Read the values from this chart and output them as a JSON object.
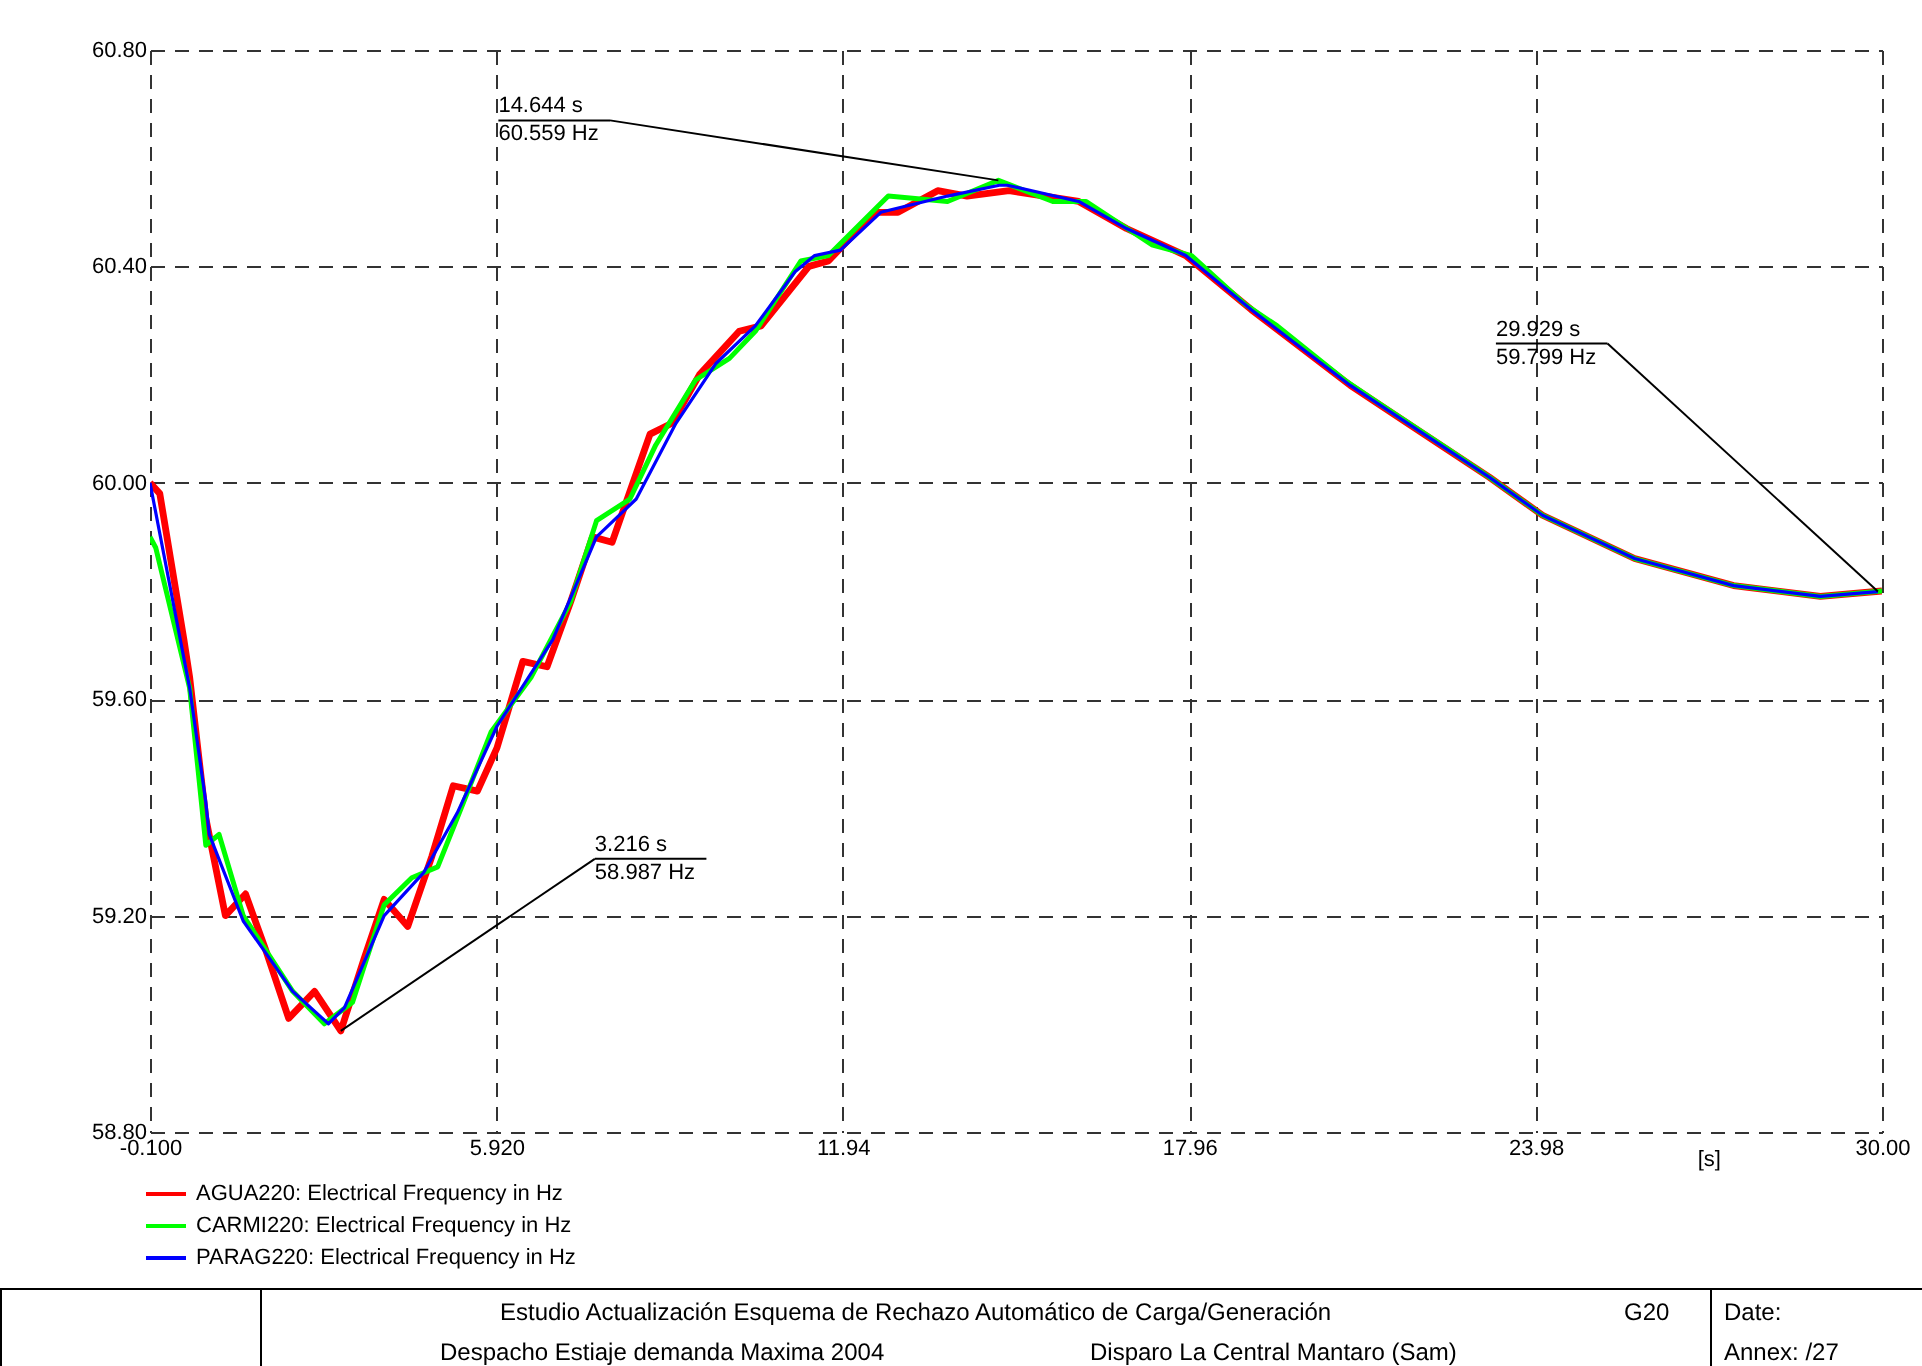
{
  "chart_data": {
    "type": "line",
    "xlabel": "[s]",
    "xlim": [
      -0.1,
      30.0
    ],
    "xticks": [
      {
        "value": -0.1,
        "label": "-0.100"
      },
      {
        "value": 5.92,
        "label": "5.920"
      },
      {
        "value": 11.94,
        "label": "11.94"
      },
      {
        "value": 17.96,
        "label": "17.96"
      },
      {
        "value": 23.98,
        "label": "23.98"
      },
      {
        "value": 30.0,
        "label": "30.00"
      }
    ],
    "ylim": [
      58.8,
      60.8
    ],
    "yticks": [
      {
        "value": 58.8,
        "label": "58.80"
      },
      {
        "value": 59.2,
        "label": "59.20"
      },
      {
        "value": 59.6,
        "label": "59.60"
      },
      {
        "value": 60.0,
        "label": "60.00"
      },
      {
        "value": 60.4,
        "label": "60.40"
      },
      {
        "value": 60.8,
        "label": "60.80"
      }
    ],
    "grid": true,
    "legend": "bottom left",
    "line_style": "solid",
    "annotations": [
      {
        "text": "14.644 s\n60.559 Hz",
        "x": 14.644,
        "y": 60.559
      },
      {
        "text": "3.216 s\n58.987 Hz",
        "x": 3.216,
        "y": 58.987
      },
      {
        "text": "29.929 s\n59.799 Hz",
        "x": 29.929,
        "y": 59.799
      },
      "Estudio Actualización Esquema de Rechazo Automático de Carga/Generación",
      "G20",
      "Date:",
      "Despacho Estiaje demanda Maxima 2004",
      "Disparo La Central Mantaro (Sam)",
      "Annex:   /27"
    ],
    "series": [
      {
        "name": "AGUA220: Electrical Frequency in Hz",
        "color": "#ff0000",
        "x": [
          -0.1,
          0.07,
          0.49,
          0.59,
          0.87,
          1.21,
          1.56,
          1.9,
          2.31,
          2.76,
          3.216,
          3.62,
          3.97,
          4.38,
          4.8,
          5.17,
          5.59,
          5.93,
          6.38,
          6.8,
          7.21,
          7.59,
          7.93,
          8.59,
          8.97,
          9.45,
          10.14,
          10.52,
          11.35,
          11.69,
          12.49,
          12.9,
          13.59,
          14.1,
          14.83,
          16.04,
          16.87,
          17.9,
          19.04,
          20.76,
          22.04,
          23.18,
          24.1,
          25.7,
          27.42,
          28.93,
          30.0
        ],
        "values": [
          60.0,
          59.98,
          59.71,
          59.64,
          59.38,
          59.2,
          59.24,
          59.14,
          59.01,
          59.06,
          58.987,
          59.12,
          59.23,
          59.18,
          59.31,
          59.44,
          59.43,
          59.51,
          59.67,
          59.66,
          59.78,
          59.9,
          59.89,
          60.09,
          60.11,
          60.2,
          60.28,
          60.29,
          60.4,
          60.41,
          60.5,
          60.5,
          60.54,
          60.53,
          60.54,
          60.52,
          60.47,
          60.42,
          60.32,
          60.18,
          60.09,
          60.01,
          59.94,
          59.86,
          59.81,
          59.79,
          59.8
        ]
      },
      {
        "name": "CARMI220: Electrical Frequency in Hz",
        "color": "#00ff00",
        "x": [
          -0.1,
          0.0,
          0.59,
          0.87,
          1.1,
          1.52,
          2.38,
          2.93,
          3.42,
          3.97,
          4.45,
          4.9,
          5.35,
          5.83,
          6.52,
          7.21,
          7.66,
          8.24,
          8.69,
          9.38,
          9.97,
          10.42,
          11.21,
          11.69,
          12.73,
          13.76,
          14.644,
          15.59,
          16.17,
          17.31,
          18.0,
          18.93,
          19.49,
          20.66,
          21.21,
          22.49,
          23.18,
          24.1,
          25.7,
          27.42,
          28.93,
          30.0
        ],
        "values": [
          59.9,
          59.88,
          59.62,
          59.33,
          59.35,
          59.2,
          59.06,
          59.0,
          59.04,
          59.22,
          59.27,
          59.29,
          59.41,
          59.54,
          59.64,
          59.78,
          59.93,
          59.97,
          60.07,
          60.19,
          60.23,
          60.28,
          60.41,
          60.42,
          60.53,
          60.52,
          60.559,
          60.52,
          60.52,
          60.44,
          60.42,
          60.33,
          60.29,
          60.19,
          60.15,
          60.06,
          60.01,
          59.94,
          59.86,
          59.81,
          59.79,
          59.8
        ]
      },
      {
        "name": "PARAG220: Electrical Frequency in Hz",
        "color": "#0000ff",
        "x": [
          -0.1,
          0.59,
          0.87,
          0.93,
          1.52,
          2.38,
          3.0,
          3.28,
          3.97,
          4.66,
          5.24,
          5.93,
          6.9,
          7.66,
          8.35,
          9.04,
          9.73,
          10.42,
          11.11,
          11.45,
          11.9,
          12.6,
          13.76,
          14.66,
          14.8,
          16.04,
          16.87,
          17.9,
          19.04,
          20.76,
          22.04,
          23.18,
          24.1,
          25.7,
          27.42,
          28.93,
          29.929
        ],
        "values": [
          60.0,
          59.62,
          59.41,
          59.35,
          59.19,
          59.06,
          59.0,
          59.03,
          59.2,
          59.28,
          59.39,
          59.55,
          59.71,
          59.9,
          59.97,
          60.11,
          60.22,
          60.29,
          60.39,
          60.42,
          60.43,
          60.5,
          60.53,
          60.55,
          60.55,
          60.52,
          60.47,
          60.42,
          60.32,
          60.18,
          60.09,
          60.01,
          59.94,
          59.86,
          59.81,
          59.79,
          59.799
        ]
      }
    ]
  }
}
